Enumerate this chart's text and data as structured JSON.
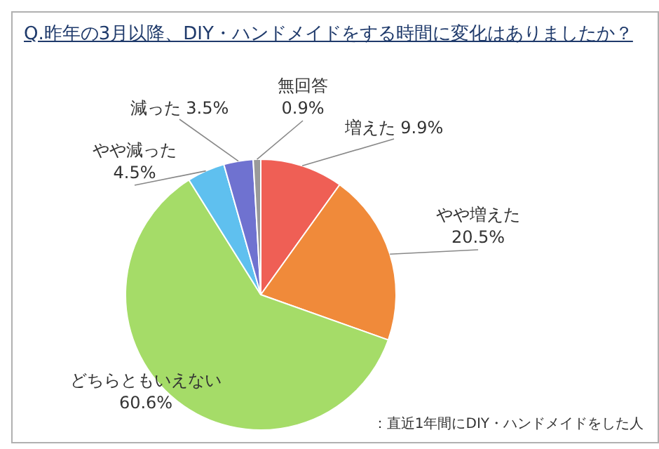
{
  "chart_data": {
    "type": "pie",
    "title": "Q.昨年の3月以降、DIY・ハンドメイドをする時間に変化はありましたか？",
    "categories": [
      "増えた",
      "やや増えた",
      "どちらともいえない",
      "やや減った",
      "減った",
      "無回答"
    ],
    "values": [
      9.9,
      20.5,
      60.6,
      4.5,
      3.5,
      0.9
    ],
    "value_labels": [
      "9.9%",
      "20.5%",
      "60.6%",
      "4.5%",
      "3.5%",
      "0.9%"
    ],
    "colors": [
      "#ef5f55",
      "#f08a3a",
      "#a5dc68",
      "#5fc0ef",
      "#6f72d0",
      "#9a9a9a"
    ],
    "annotations": [
      "：直近1年間にDIY・ハンドメイドをした人"
    ],
    "legend": false
  }
}
